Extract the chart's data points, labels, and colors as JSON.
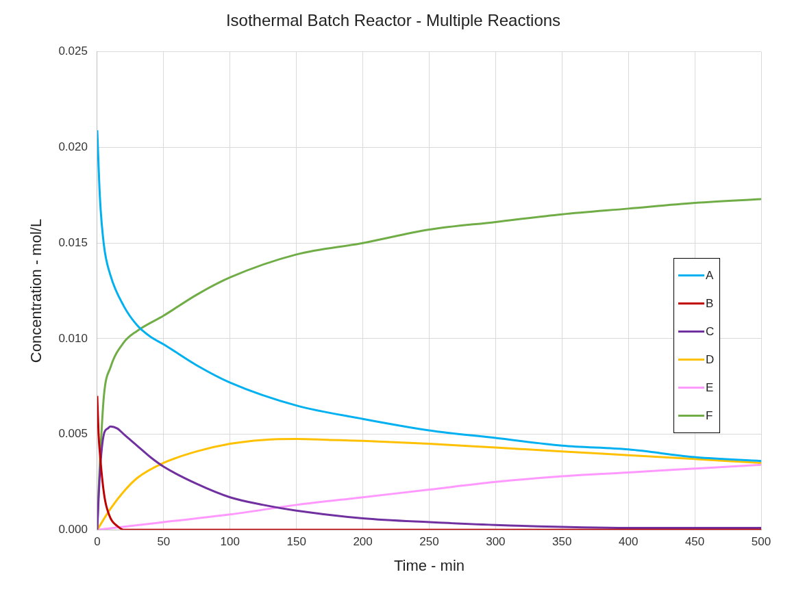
{
  "chart_data": {
    "type": "line",
    "title": "Isothermal Batch Reactor - Multiple Reactions",
    "xlabel": "Time - min",
    "ylabel": "Concentration - mol/L",
    "xlim": [
      0,
      500
    ],
    "xticks": [
      0,
      50,
      100,
      150,
      200,
      250,
      300,
      350,
      400,
      450,
      500
    ],
    "ylim": [
      0,
      0.025
    ],
    "yticks": [
      {
        "value": 0,
        "label": "0.000"
      },
      {
        "value": 0.005,
        "label": "0.005"
      },
      {
        "value": 0.01,
        "label": "0.010"
      },
      {
        "value": 0.015,
        "label": "0.015"
      },
      {
        "value": 0.02,
        "label": "0.020"
      },
      {
        "value": 0.025,
        "label": "0.025"
      }
    ],
    "grid": true,
    "legend": "right",
    "marker": "none",
    "line_style": "solid",
    "series": [
      {
        "name": "A",
        "color": "#00b0f0",
        "x": [
          0,
          2,
          5,
          10,
          20,
          30,
          40,
          50,
          75,
          100,
          150,
          200,
          250,
          300,
          350,
          400,
          450,
          500
        ],
        "values": [
          0.0209,
          0.0174,
          0.0149,
          0.0133,
          0.0117,
          0.0107,
          0.0101,
          0.0097,
          0.0086,
          0.0077,
          0.0065,
          0.0058,
          0.0052,
          0.0048,
          0.0044,
          0.0042,
          0.0038,
          0.0036
        ]
      },
      {
        "name": "B",
        "color": "#c00000",
        "x": [
          0,
          1,
          2,
          4,
          6,
          10,
          15,
          20,
          100,
          200,
          300,
          400,
          500
        ],
        "values": [
          0.007,
          0.005,
          0.004,
          0.0025,
          0.0015,
          0.0006,
          0.0002,
          0,
          0,
          0,
          0,
          0,
          0
        ]
      },
      {
        "name": "C",
        "color": "#7030a0",
        "x": [
          0,
          2,
          5,
          8,
          10,
          15,
          20,
          30,
          40,
          50,
          75,
          100,
          125,
          150,
          200,
          250,
          300,
          400,
          500
        ],
        "values": [
          0,
          0.003,
          0.005,
          0.0053,
          0.0054,
          0.0053,
          0.005,
          0.0044,
          0.0038,
          0.0033,
          0.0024,
          0.0017,
          0.0013,
          0.001,
          0.0006,
          0.0004,
          0.00025,
          0.0001,
          0.0001
        ]
      },
      {
        "name": "D",
        "color": "#ffc000",
        "x": [
          0,
          10,
          20,
          30,
          50,
          75,
          100,
          125,
          150,
          175,
          200,
          250,
          300,
          350,
          400,
          450,
          500
        ],
        "values": [
          0,
          0.0011,
          0.002,
          0.0027,
          0.0035,
          0.0041,
          0.0045,
          0.0047,
          0.00475,
          0.0047,
          0.00465,
          0.0045,
          0.0043,
          0.0041,
          0.0039,
          0.0037,
          0.0035
        ]
      },
      {
        "name": "E",
        "color": "#ff99ff",
        "x": [
          0,
          50,
          100,
          150,
          200,
          250,
          300,
          350,
          400,
          450,
          500
        ],
        "values": [
          0,
          0.0004,
          0.0008,
          0.0013,
          0.0017,
          0.0021,
          0.0025,
          0.0028,
          0.003,
          0.0032,
          0.0034
        ]
      },
      {
        "name": "F",
        "color": "#70ad47",
        "x": [
          0,
          1,
          2,
          5,
          10,
          20,
          30,
          50,
          75,
          100,
          150,
          200,
          250,
          300,
          350,
          400,
          450,
          500
        ],
        "values": [
          0,
          0.002,
          0.0035,
          0.007,
          0.0085,
          0.0098,
          0.0104,
          0.0112,
          0.0123,
          0.0132,
          0.0144,
          0.015,
          0.0157,
          0.0161,
          0.0165,
          0.0168,
          0.0171,
          0.0173
        ]
      }
    ]
  }
}
